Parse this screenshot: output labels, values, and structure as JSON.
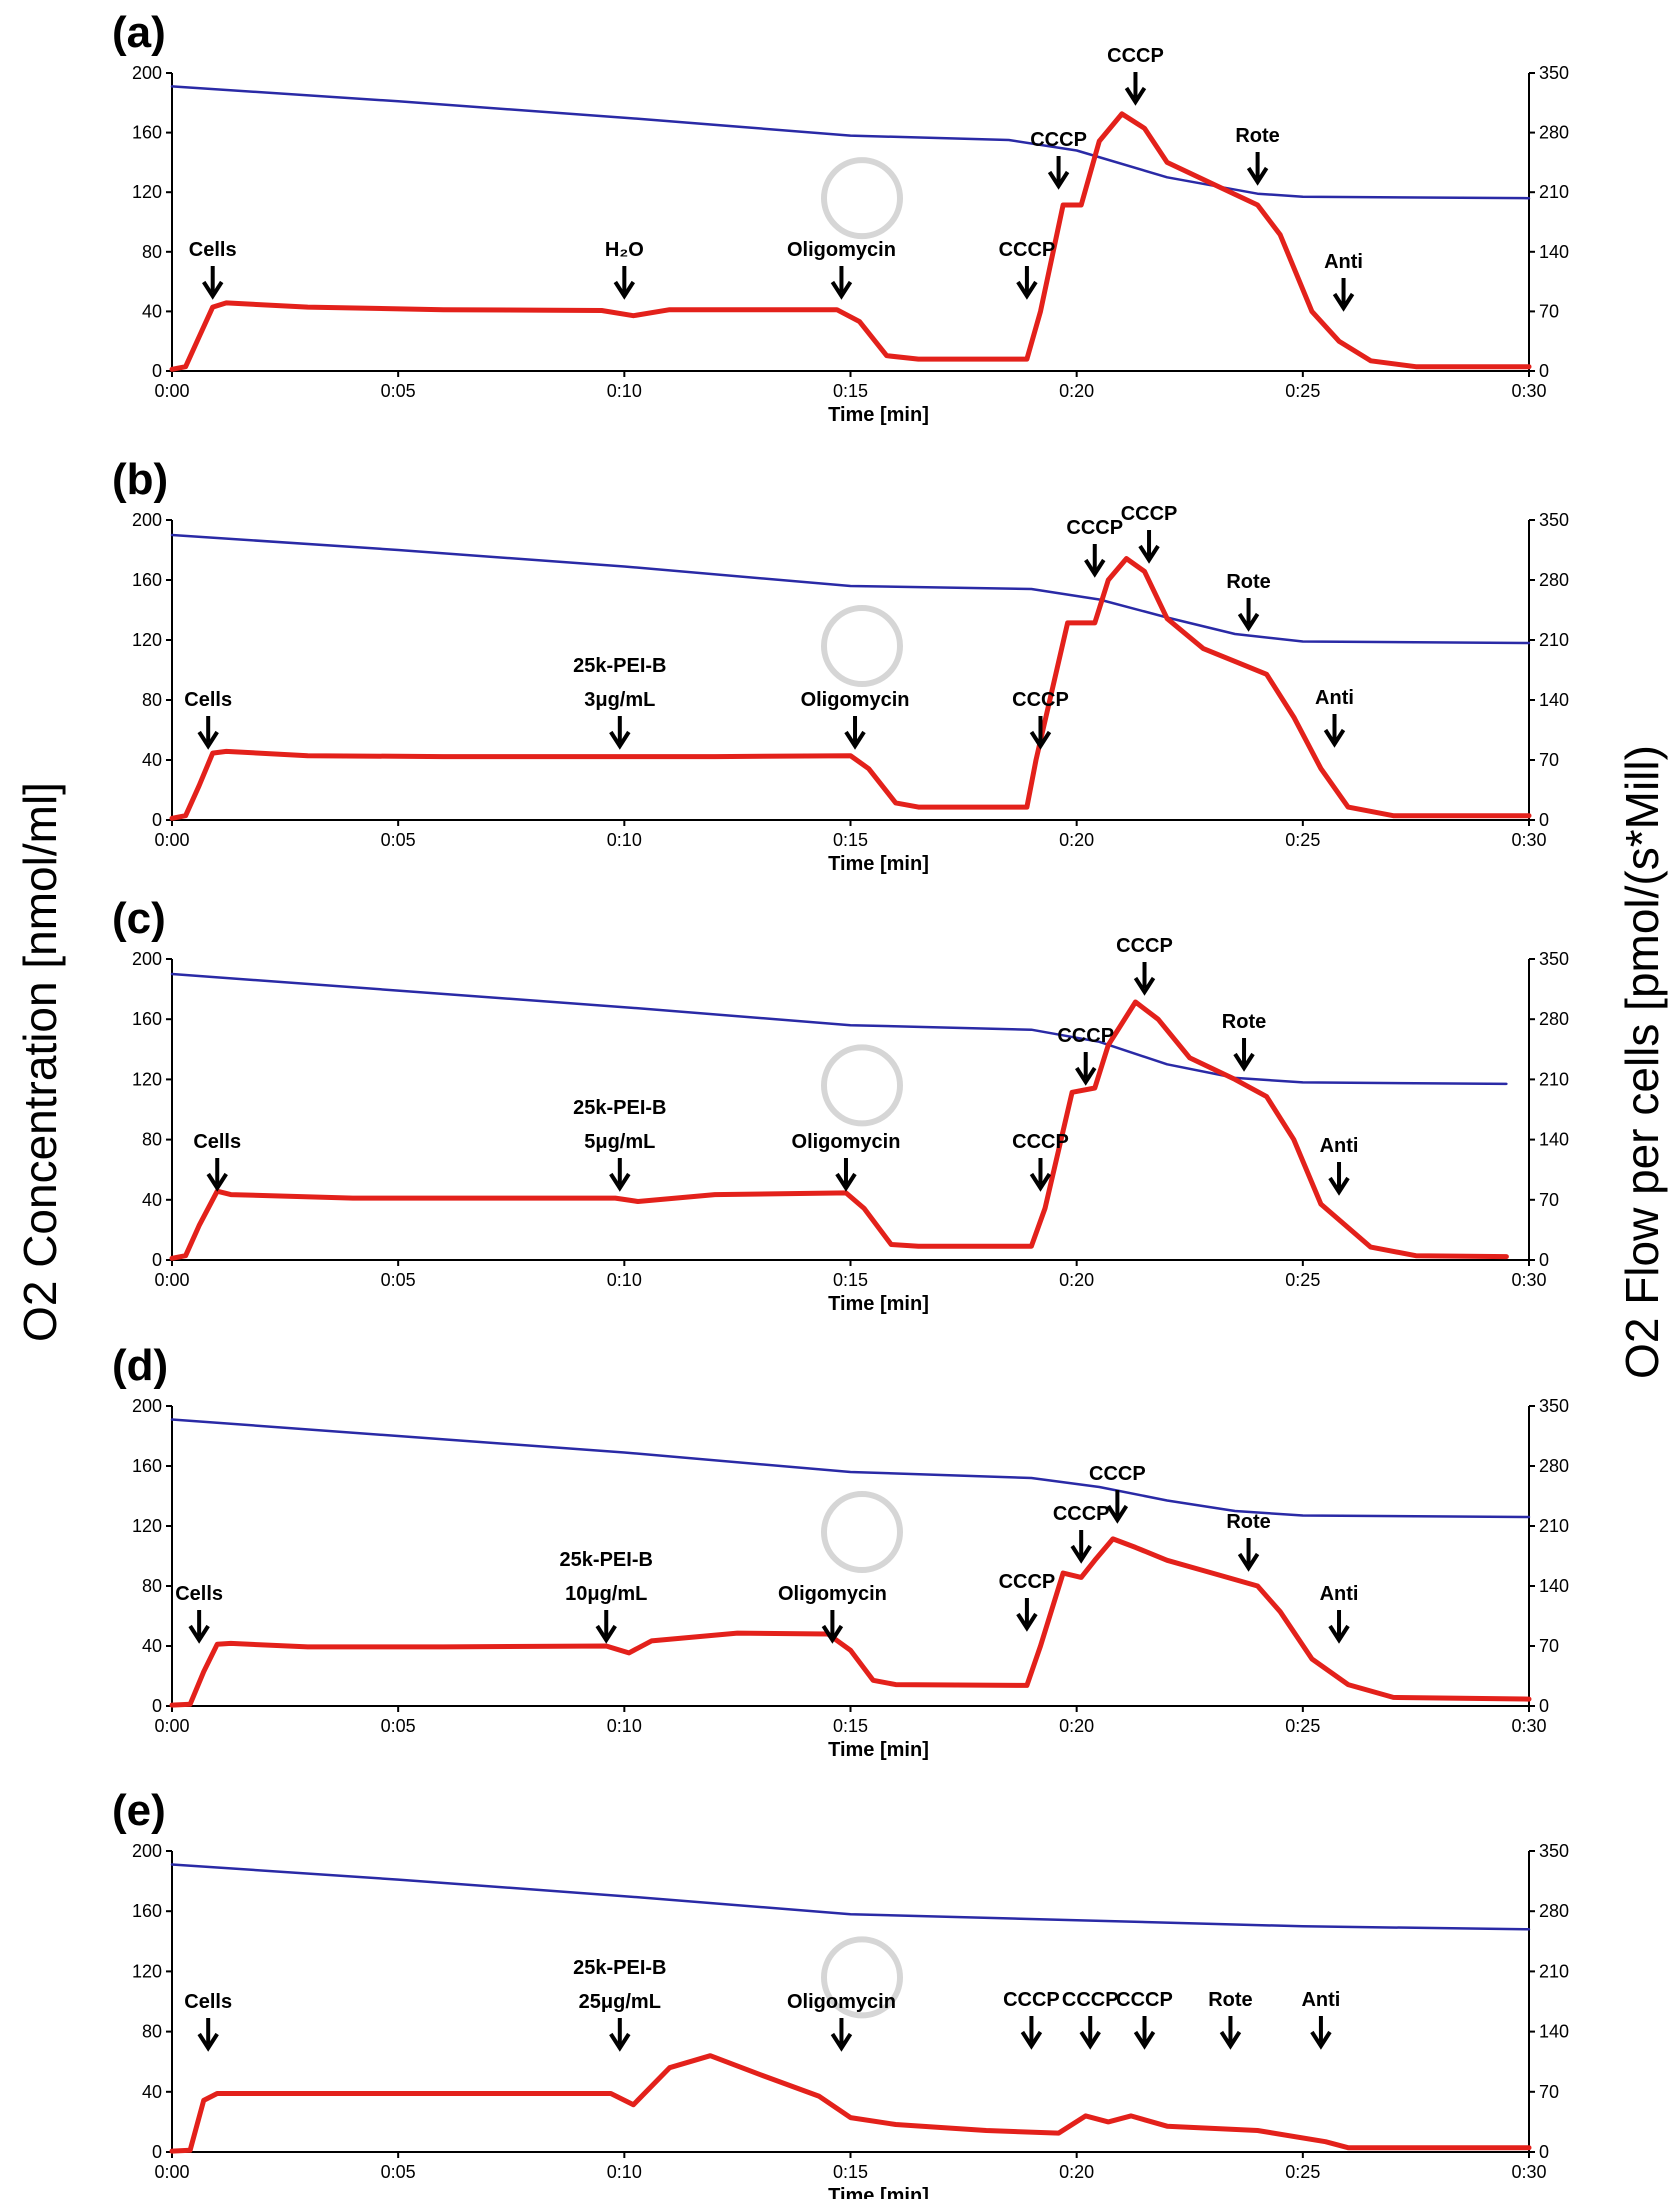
{
  "figure": {
    "left_axis_label": "O2 Concentration [nmol/ml]",
    "right_axis_label": "O2 Flow per cells [pmol/(s*Mill)"
  },
  "colors": {
    "concentration_line": "#2a2aa6",
    "flow_line": "#e3211b",
    "axis": "#000000",
    "text": "#000000"
  },
  "chart_data": [
    {
      "type": "line",
      "panel_label": "(a)",
      "xlabel": "Time [min]",
      "x_ticks": [
        "0:00",
        "0:05",
        "0:10",
        "0:15",
        "0:20",
        "0:25",
        "0:30"
      ],
      "left_ticks": [
        "0",
        "40",
        "80",
        "120",
        "160",
        "200"
      ],
      "right_ticks": [
        "0",
        "70",
        "140",
        "210",
        "280",
        "350"
      ],
      "xlim": [
        0,
        30
      ],
      "ylim_left": [
        0,
        200
      ],
      "ylim_right": [
        0,
        350
      ],
      "series": [
        {
          "name": "O2 Concentration",
          "axis": "left",
          "color": "#2a2aa6",
          "x": [
            0,
            5,
            10,
            15,
            18.5,
            20,
            22,
            24,
            25,
            30
          ],
          "y": [
            191,
            181,
            170,
            158,
            155,
            148,
            130,
            119,
            117,
            116
          ]
        },
        {
          "name": "O2 Flow per cells",
          "axis": "right",
          "color": "#e3211b",
          "x": [
            0,
            0.3,
            0.6,
            0.9,
            1.2,
            3,
            6,
            9.5,
            10.2,
            11,
            14.7,
            15.2,
            15.8,
            16.5,
            18.9,
            19.2,
            19.7,
            20.1,
            20.5,
            21,
            21.5,
            22,
            23,
            24,
            24.5,
            25.2,
            25.8,
            26.5,
            27.5,
            30
          ],
          "y": [
            2,
            5,
            40,
            75,
            80,
            75,
            72,
            71,
            65,
            72,
            72,
            58,
            18,
            14,
            14,
            70,
            195,
            195,
            270,
            302,
            285,
            245,
            220,
            195,
            160,
            70,
            35,
            12,
            5,
            5
          ]
        }
      ],
      "annotations": [
        {
          "label": "Cells",
          "x": 0.9
        },
        {
          "label": "H₂O",
          "x": 10
        },
        {
          "label": "Oligomycin",
          "x": 14.8
        },
        {
          "label": "CCCP",
          "x": 18.9
        },
        {
          "label": "CCCP",
          "x": 19.6
        },
        {
          "label": "CCCP",
          "x": 21.3
        },
        {
          "label": "Rote",
          "x": 24
        },
        {
          "label": "Anti",
          "x": 25.9
        }
      ]
    },
    {
      "type": "line",
      "panel_label": "(b)",
      "xlabel": "Time [min]",
      "x_ticks": [
        "0:00",
        "0:05",
        "0:10",
        "0:15",
        "0:20",
        "0:25",
        "0:30"
      ],
      "left_ticks": [
        "0",
        "40",
        "80",
        "120",
        "160",
        "200"
      ],
      "right_ticks": [
        "0",
        "70",
        "140",
        "210",
        "280",
        "350"
      ],
      "xlim": [
        0,
        30
      ],
      "ylim_left": [
        0,
        200
      ],
      "ylim_right": [
        0,
        350
      ],
      "series": [
        {
          "name": "O2 Concentration",
          "axis": "left",
          "color": "#2a2aa6",
          "x": [
            0,
            5,
            10,
            15,
            19,
            20.5,
            22,
            23.5,
            25,
            30
          ],
          "y": [
            190,
            180,
            169,
            156,
            154,
            147,
            135,
            124,
            119,
            118
          ]
        },
        {
          "name": "O2 Flow per cells",
          "axis": "right",
          "color": "#e3211b",
          "x": [
            0,
            0.3,
            0.6,
            0.9,
            1.2,
            3,
            6,
            9,
            12,
            15,
            15.4,
            16,
            16.5,
            18.9,
            19.1,
            19.8,
            20.4,
            20.7,
            21.1,
            21.5,
            22,
            22.8,
            23.5,
            24.2,
            24.8,
            25.4,
            26,
            27,
            30
          ],
          "y": [
            2,
            5,
            40,
            78,
            80,
            75,
            74,
            74,
            74,
            75,
            60,
            20,
            15,
            15,
            70,
            230,
            230,
            280,
            305,
            290,
            235,
            200,
            185,
            170,
            120,
            60,
            15,
            5,
            5
          ]
        }
      ],
      "annotations": [
        {
          "label": "Cells",
          "x": 0.8
        },
        {
          "label": "25k-PEI-B",
          "sublabel": "3μg/mL",
          "x": 9.9
        },
        {
          "label": "Oligomycin",
          "x": 15.1
        },
        {
          "label": "CCCP",
          "x": 19.2
        },
        {
          "label": "CCCP",
          "x": 20.4
        },
        {
          "label": "CCCP",
          "x": 21.6
        },
        {
          "label": "Rote",
          "x": 23.8
        },
        {
          "label": "Anti",
          "x": 25.7
        }
      ]
    },
    {
      "type": "line",
      "panel_label": "(c)",
      "xlabel": "Time [min]",
      "x_ticks": [
        "0:00",
        "0:05",
        "0:10",
        "0:15",
        "0:20",
        "0:25",
        "0:30"
      ],
      "left_ticks": [
        "0",
        "40",
        "80",
        "120",
        "160",
        "200"
      ],
      "right_ticks": [
        "0",
        "70",
        "140",
        "210",
        "280",
        "350"
      ],
      "xlim": [
        0,
        30
      ],
      "ylim_left": [
        0,
        200
      ],
      "ylim_right": [
        0,
        350
      ],
      "series": [
        {
          "name": "O2 Concentration",
          "axis": "left",
          "color": "#2a2aa6",
          "x": [
            0,
            5,
            10,
            15,
            19,
            20.5,
            22,
            23.5,
            25,
            29.5
          ],
          "y": [
            190,
            179,
            168,
            156,
            153,
            145,
            130,
            121,
            118,
            117
          ]
        },
        {
          "name": "O2 Flow per cells",
          "axis": "right",
          "color": "#e3211b",
          "x": [
            0,
            0.3,
            0.6,
            1,
            1.3,
            4,
            7,
            9.8,
            10.3,
            12,
            14.9,
            15.3,
            15.9,
            16.5,
            19,
            19.3,
            19.9,
            20.4,
            20.7,
            21.3,
            21.8,
            22.5,
            23.5,
            24.2,
            24.8,
            25.4,
            26.5,
            27.5,
            29.5
          ],
          "y": [
            2,
            5,
            40,
            80,
            76,
            72,
            72,
            72,
            68,
            76,
            78,
            60,
            18,
            16,
            16,
            60,
            195,
            200,
            250,
            300,
            280,
            235,
            210,
            190,
            140,
            65,
            15,
            5,
            4
          ]
        }
      ],
      "annotations": [
        {
          "label": "Cells",
          "x": 1
        },
        {
          "label": "25k-PEI-B",
          "sublabel": "5μg/mL",
          "x": 9.9
        },
        {
          "label": "Oligomycin",
          "x": 14.9
        },
        {
          "label": "CCCP",
          "x": 19.2
        },
        {
          "label": "CCCP",
          "x": 20.2
        },
        {
          "label": "CCCP",
          "x": 21.5
        },
        {
          "label": "Rote",
          "x": 23.7
        },
        {
          "label": "Anti",
          "x": 25.8
        }
      ]
    },
    {
      "type": "line",
      "panel_label": "(d)",
      "xlabel": "Time [min]",
      "x_ticks": [
        "0:00",
        "0:05",
        "0:10",
        "0:15",
        "0:20",
        "0:25",
        "0:30"
      ],
      "left_ticks": [
        "0",
        "40",
        "80",
        "120",
        "160",
        "200"
      ],
      "right_ticks": [
        "0",
        "70",
        "140",
        "210",
        "280",
        "350"
      ],
      "xlim": [
        0,
        30
      ],
      "ylim_left": [
        0,
        200
      ],
      "ylim_right": [
        0,
        350
      ],
      "series": [
        {
          "name": "O2 Concentration",
          "axis": "left",
          "color": "#2a2aa6",
          "x": [
            0,
            5,
            10,
            15,
            19,
            20.5,
            22,
            23.5,
            25,
            30
          ],
          "y": [
            191,
            180,
            169,
            156,
            152,
            146,
            137,
            130,
            127,
            126
          ]
        },
        {
          "name": "O2 Flow per cells",
          "axis": "right",
          "color": "#e3211b",
          "x": [
            0,
            0.4,
            0.7,
            1,
            1.3,
            3,
            6,
            9.6,
            10.1,
            10.6,
            12.5,
            14.5,
            15,
            15.5,
            16,
            18.9,
            19.2,
            19.7,
            20.1,
            20.4,
            20.8,
            21.3,
            22,
            23,
            24,
            24.5,
            25.2,
            26,
            27,
            30
          ],
          "y": [
            1,
            2,
            40,
            72,
            73,
            69,
            69,
            70,
            62,
            76,
            85,
            84,
            65,
            30,
            25,
            24,
            70,
            155,
            150,
            170,
            195,
            185,
            170,
            155,
            140,
            110,
            55,
            25,
            10,
            8
          ]
        }
      ],
      "annotations": [
        {
          "label": "Cells",
          "x": 0.6
        },
        {
          "label": "25k-PEI-B",
          "sublabel": "10μg/mL",
          "x": 9.6
        },
        {
          "label": "Oligomycin",
          "x": 14.6
        },
        {
          "label": "CCCP",
          "x": 18.9
        },
        {
          "label": "CCCP",
          "x": 20.1
        },
        {
          "label": "CCCP",
          "x": 20.9
        },
        {
          "label": "Rote",
          "x": 23.8
        },
        {
          "label": "Anti",
          "x": 25.8
        }
      ]
    },
    {
      "type": "line",
      "panel_label": "(e)",
      "xlabel": "Time [min]",
      "x_ticks": [
        "0:00",
        "0:05",
        "0:10",
        "0:15",
        "0:20",
        "0:25",
        "0:30"
      ],
      "left_ticks": [
        "0",
        "40",
        "80",
        "120",
        "160",
        "200"
      ],
      "right_ticks": [
        "0",
        "70",
        "140",
        "210",
        "280",
        "350"
      ],
      "xlim": [
        0,
        30
      ],
      "ylim_left": [
        0,
        200
      ],
      "ylim_right": [
        0,
        350
      ],
      "series": [
        {
          "name": "O2 Concentration",
          "axis": "left",
          "color": "#2a2aa6",
          "x": [
            0,
            5,
            10,
            15,
            20,
            25,
            30
          ],
          "y": [
            191,
            181,
            170,
            158,
            154,
            150,
            148
          ]
        },
        {
          "name": "O2 Flow per cells",
          "axis": "right",
          "color": "#e3211b",
          "x": [
            0,
            0.4,
            0.7,
            1,
            1.5,
            5,
            9.7,
            10.2,
            11,
            11.9,
            13,
            14.3,
            15,
            16,
            18,
            19.6,
            20.2,
            20.7,
            21.2,
            22,
            24,
            25.5,
            26,
            27,
            28.5,
            30
          ],
          "y": [
            1,
            2,
            60,
            68,
            68,
            68,
            68,
            55,
            98,
            112,
            90,
            65,
            40,
            32,
            25,
            22,
            42,
            35,
            42,
            30,
            25,
            12,
            5,
            5,
            5,
            5
          ]
        }
      ],
      "annotations": [
        {
          "label": "Cells",
          "x": 0.8
        },
        {
          "label": "25k-PEI-B",
          "sublabel": "25μg/mL",
          "x": 9.9
        },
        {
          "label": "Oligomycin",
          "x": 14.8
        },
        {
          "label": "CCCP",
          "x": 19
        },
        {
          "label": "CCCP",
          "x": 20.3
        },
        {
          "label": "CCCP",
          "x": 21.5
        },
        {
          "label": "Rote",
          "x": 23.4
        },
        {
          "label": "Anti",
          "x": 25.4
        }
      ]
    }
  ]
}
